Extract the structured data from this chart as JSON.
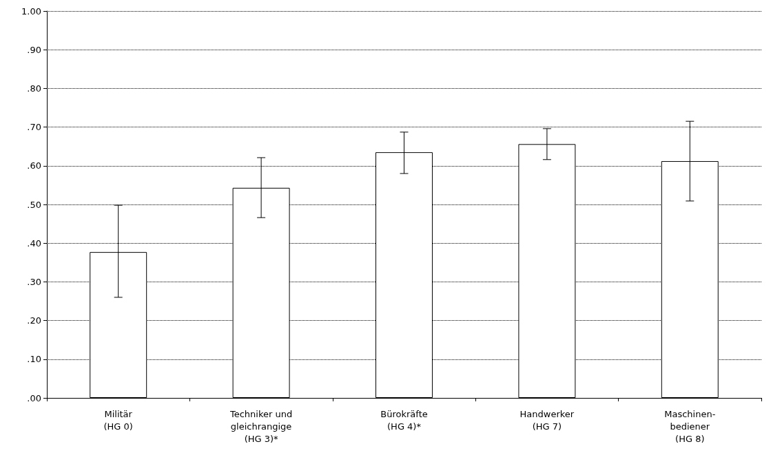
{
  "chart_data": {
    "type": "bar",
    "categories": [
      "Militär\n(HG 0)",
      "Techniker und\ngleichrangige\n(HG 3)*",
      "Bürokräfte\n(HG 4)*",
      "Handwerker\n(HG 7)",
      "Maschinen-\nbediener\n(HG 8)"
    ],
    "values": [
      0.377,
      0.543,
      0.635,
      0.656,
      0.612
    ],
    "errors": [
      [
        0.26,
        0.498
      ],
      [
        0.466,
        0.621
      ],
      [
        0.58,
        0.687
      ],
      [
        0.616,
        0.696
      ],
      [
        0.509,
        0.715
      ]
    ],
    "color": "#ffffff",
    "ylim": [
      0,
      1
    ],
    "yticks": [
      {
        "value": 0,
        "label": ".00"
      },
      {
        "value": 0.1,
        "label": ".10"
      },
      {
        "value": 0.2,
        "label": ".20"
      },
      {
        "value": 0.3,
        "label": ".30"
      },
      {
        "value": 0.4,
        "label": ".40"
      },
      {
        "value": 0.5,
        "label": ".50"
      },
      {
        "value": 0.6,
        "label": ".60"
      },
      {
        "value": 0.7,
        "label": ".70"
      },
      {
        "value": 0.8,
        "label": ".80"
      },
      {
        "value": 0.9,
        "label": ".90"
      },
      {
        "value": 1,
        "label": "1.00"
      }
    ],
    "grid": "y"
  }
}
